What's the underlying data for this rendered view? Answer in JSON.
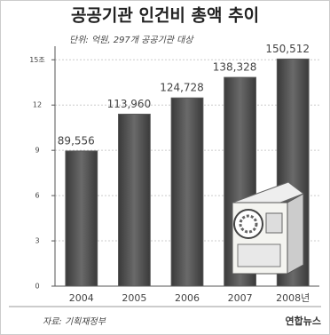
{
  "chart_data": {
    "type": "bar",
    "title": "공공기관 인건비 총액 추이",
    "subtitle": "단위: 억원, 297개 공공기관 대상",
    "categories": [
      "2004",
      "2005",
      "2006",
      "2007",
      "2008년"
    ],
    "values": [
      8.9556,
      11.396,
      12.4728,
      13.8328,
      15.0512
    ],
    "value_labels": [
      "89,556",
      "113,960",
      "124,728",
      "138,328",
      "150,512"
    ],
    "color": "#5a5a5a",
    "ylim": [
      0,
      15.9
    ],
    "yticks": [
      0,
      3,
      6,
      9,
      12,
      {
        "value": 15,
        "label": "15조"
      }
    ],
    "grid": true,
    "source": "자료: 기획재정부",
    "logo": "연합뉴스"
  }
}
